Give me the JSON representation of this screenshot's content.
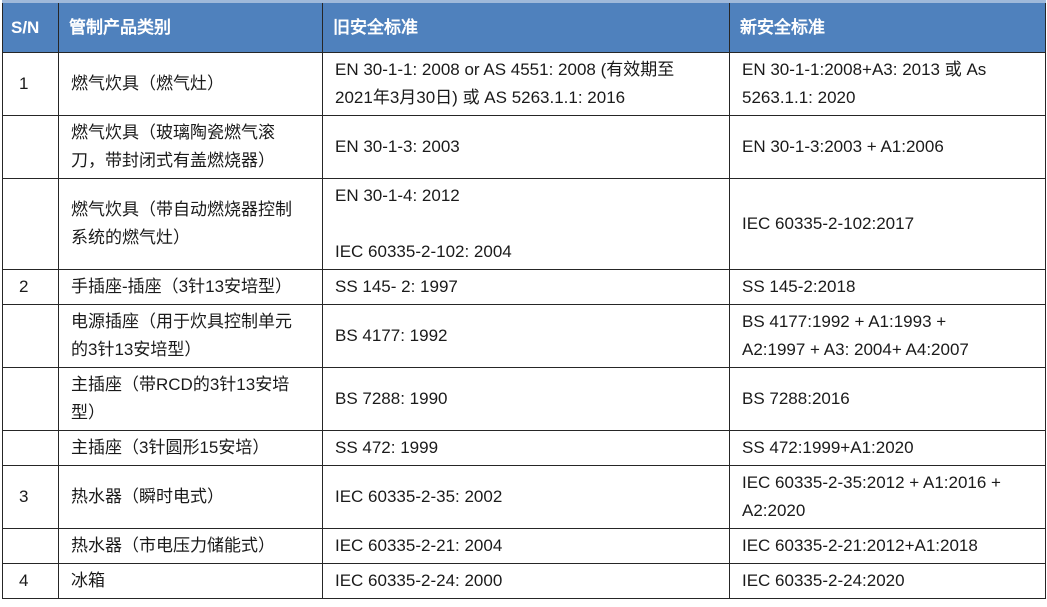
{
  "colors": {
    "header_bg": "#4F81BD",
    "header_text": "#FFFFFF",
    "border": "#262626",
    "body_text": "#1a1a1a",
    "top_accent": "#9FB9DA"
  },
  "table": {
    "headers": [
      {
        "key": "sn",
        "label": "S/N"
      },
      {
        "key": "product",
        "label": "管制产品类别"
      },
      {
        "key": "old",
        "label": "旧安全标准"
      },
      {
        "key": "new",
        "label": "新安全标准"
      }
    ],
    "rows": [
      {
        "sn": "1",
        "product": "燃气炊具（燃气灶）",
        "old": "EN 30-1-1: 2008 or AS 4551: 2008 (有效期至\n2021年3月30日) 或 AS 5263.1.1: 2016",
        "new": "EN 30-1-1:2008+A3: 2013 或 As\n5263.1.1: 2020"
      },
      {
        "sn": "",
        "product": "燃气炊具（玻璃陶瓷燃气滚\n刀，带封闭式有盖燃烧器）",
        "old": "EN 30-1-3: 2003",
        "new": "EN 30-1-3:2003 + A1:2006"
      },
      {
        "sn": "",
        "product": "燃气炊具（带自动燃烧器控制\n系统的燃气灶）",
        "old": "EN 30-1-4: 2012\n\nIEC 60335-2-102: 2004",
        "new": "IEC 60335-2-102:2017"
      },
      {
        "sn": "2",
        "product": "手插座-插座（3针13安培型）",
        "old": "SS 145- 2: 1997",
        "new": "SS 145-2:2018"
      },
      {
        "sn": "",
        "product": "电源插座（用于炊具控制单元\n的3针13安培型）",
        "old": "BS 4177: 1992",
        "new": "BS 4177:1992 + A1:1993 +\nA2:1997 + A3: 2004+ A4:2007"
      },
      {
        "sn": "",
        "product": "主插座（带RCD的3针13安培\n型）",
        "old": "BS 7288: 1990",
        "new": "BS 7288:2016"
      },
      {
        "sn": "",
        "product": "主插座（3针圆形15安培）",
        "old": "SS 472: 1999",
        "new": "SS 472:1999+A1:2020"
      },
      {
        "sn": "3",
        "product": "热水器（瞬时电式）",
        "old": "IEC 60335-2-35: 2002",
        "new": "IEC 60335-2-35:2012 + A1:2016 +\nA2:2020"
      },
      {
        "sn": "",
        "product": "热水器（市电压力储能式）",
        "old": "IEC 60335-2-21: 2004",
        "new": "IEC 60335-2-21:2012+A1:2018"
      },
      {
        "sn": "4",
        "product": "冰箱",
        "old": "IEC 60335-2-24: 2000",
        "new": "IEC 60335-2-24:2020"
      }
    ]
  }
}
